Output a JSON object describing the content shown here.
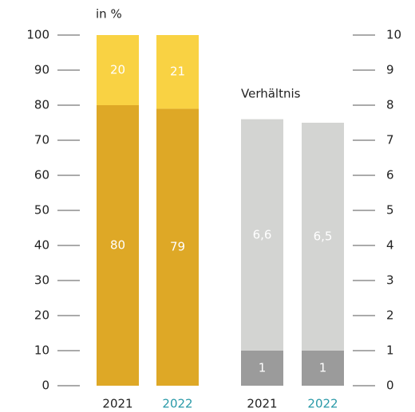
{
  "chart_data": [
    {
      "type": "bar",
      "stacked": true,
      "ylabel": "in %",
      "categories": [
        "2021",
        "2022"
      ],
      "category_label_colors": [
        "#222222",
        "#2a9aa8"
      ],
      "series": [
        {
          "color": "#dea826",
          "values": [
            80,
            79
          ]
        },
        {
          "color": "#f9d243",
          "values": [
            20,
            21
          ]
        }
      ],
      "ylim": [
        0,
        100
      ],
      "yticks": [
        0,
        10,
        20,
        30,
        40,
        50,
        60,
        70,
        80,
        90,
        100
      ],
      "axis_side": "left"
    },
    {
      "type": "bar",
      "stacked": true,
      "title": "Verhältnis",
      "categories": [
        "2021",
        "2022"
      ],
      "category_label_colors": [
        "#222222",
        "#2a9aa8"
      ],
      "series": [
        {
          "color": "#9b9b9b",
          "values": [
            1,
            1
          ]
        },
        {
          "color": "#d3d4d2",
          "values": [
            6.6,
            6.5
          ],
          "value_labels": [
            "6,6",
            "6,5"
          ]
        }
      ],
      "ylim": [
        0,
        10
      ],
      "yticks": [
        0,
        1,
        2,
        3,
        4,
        5,
        6,
        7,
        8,
        9,
        10
      ],
      "axis_side": "right"
    }
  ]
}
